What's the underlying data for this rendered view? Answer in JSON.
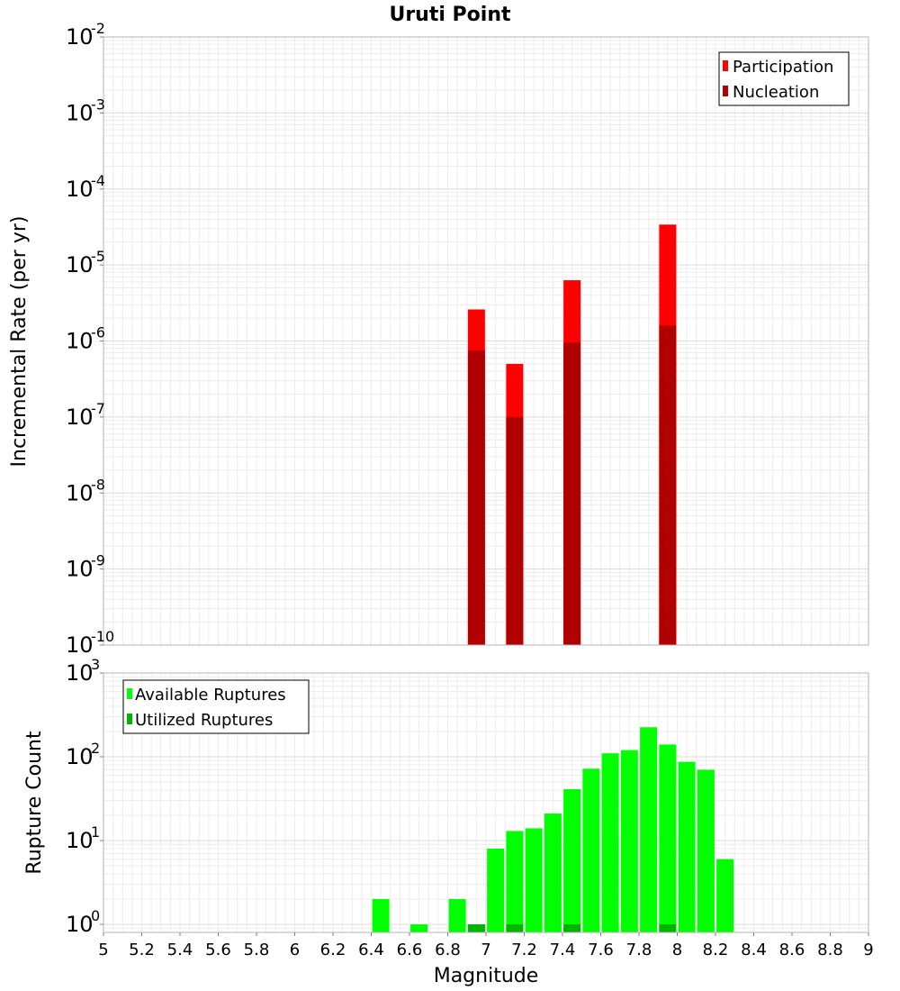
{
  "chart_data": [
    {
      "type": "bar",
      "title": "Uruti Point",
      "xlabel": "",
      "ylabel": "Incremental Rate (per yr)",
      "yscale": "log",
      "ylim": [
        1e-10,
        0.01
      ],
      "xlim": [
        5,
        9
      ],
      "y_tick_bases": [
        "10",
        "10",
        "10",
        "10",
        "10",
        "10",
        "10",
        "10",
        "10"
      ],
      "y_tick_exponents": [
        "-10",
        "-9",
        "-8",
        "-7",
        "-6",
        "-5",
        "-4",
        "-3",
        "-2"
      ],
      "legend_position": "top-right",
      "grid": true,
      "series": [
        {
          "name": "Participation",
          "color": "#ff0000",
          "x": [
            6.95,
            7.15,
            7.45,
            7.95
          ],
          "values": [
            2.6e-06,
            5e-07,
            6.3e-06,
            3.4e-05
          ]
        },
        {
          "name": "Nucleation",
          "color": "#b00000",
          "x": [
            6.95,
            7.15,
            7.45,
            7.95
          ],
          "values": [
            7.5e-07,
            1e-07,
            9.5e-07,
            1.6e-06
          ]
        }
      ]
    },
    {
      "type": "bar",
      "title": "",
      "xlabel": "Magnitude",
      "ylabel": "Rupture Count",
      "yscale": "log",
      "ylim": [
        0.8,
        1000
      ],
      "xlim": [
        5,
        9
      ],
      "y_tick_bases": [
        "10",
        "10",
        "10",
        "10"
      ],
      "y_tick_exponents": [
        "0",
        "1",
        "2",
        "3"
      ],
      "x_tick_labels": [
        "5",
        "5.2",
        "5.4",
        "5.6",
        "5.8",
        "6",
        "6.2",
        "6.4",
        "6.6",
        "6.8",
        "7",
        "7.2",
        "7.4",
        "7.6",
        "7.8",
        "8",
        "8.2",
        "8.4",
        "8.6",
        "8.8",
        "9"
      ],
      "legend_position": "top-left",
      "grid": true,
      "series": [
        {
          "name": "Available Ruptures",
          "color": "#00ff00",
          "x": [
            6.45,
            6.65,
            6.85,
            6.95,
            7.05,
            7.15,
            7.25,
            7.35,
            7.45,
            7.55,
            7.65,
            7.75,
            7.85,
            7.95,
            8.05,
            8.15,
            8.25
          ],
          "values": [
            2,
            1,
            2,
            1,
            8,
            13,
            14,
            21,
            41,
            72,
            110,
            120,
            225,
            140,
            87,
            70,
            6
          ]
        },
        {
          "name": "Utilized Ruptures",
          "color": "#00b400",
          "x": [
            6.95,
            7.15,
            7.45,
            7.95
          ],
          "values": [
            1,
            1,
            1,
            1
          ]
        }
      ]
    }
  ]
}
